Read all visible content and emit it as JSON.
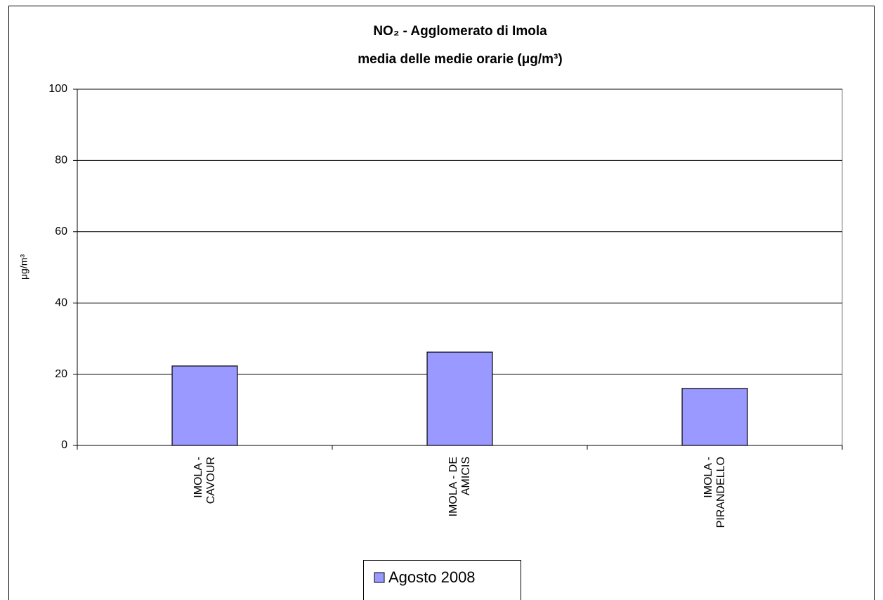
{
  "chart_data": {
    "type": "bar",
    "title": "NO₂ - Agglomerato di Imola",
    "subtitle": "media delle medie orarie (μg/m³)",
    "y_label": "μg/m³",
    "categories": [
      "IMOLA - CAVOUR",
      "IMOLA - DE AMICIS",
      "IMOLA - PIRANDELLO"
    ],
    "series": [
      {
        "name": "Agosto 2008",
        "color": "#9999ff",
        "values": [
          22.3,
          26.2,
          16.0
        ]
      }
    ],
    "ylim": [
      0,
      100
    ],
    "yticks": [
      0,
      20,
      40,
      60,
      80,
      100
    ],
    "grid": true,
    "legend": "bottom"
  }
}
